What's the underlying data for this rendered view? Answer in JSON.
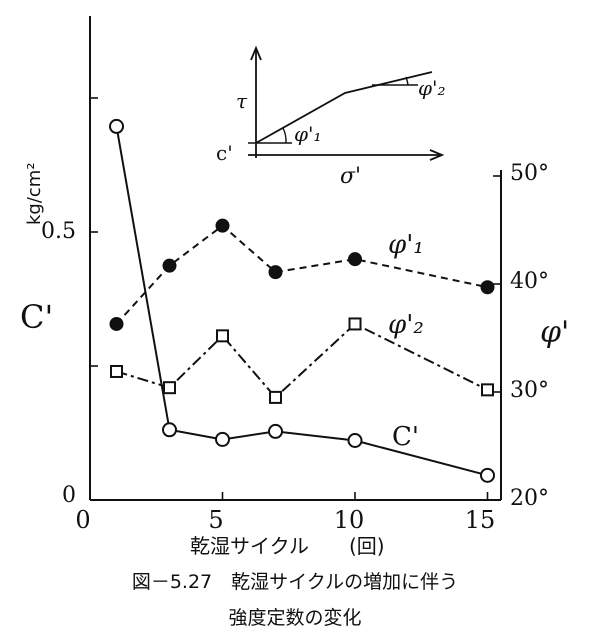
{
  "chart_data": {
    "type": "line",
    "xlabel": "乾湿サイクル　　(回)",
    "x_ticks": [
      "0",
      "5",
      "10",
      "15"
    ],
    "xlim": [
      0,
      15.5
    ],
    "left_axis": {
      "label": "C'",
      "unit": "kg/cm²",
      "ylim": [
        0,
        1.0
      ],
      "ticks": [
        "0",
        "0.5"
      ]
    },
    "right_axis": {
      "label": "φ'",
      "ylim": [
        20,
        50
      ],
      "ticks": [
        "20°",
        "30°",
        "40°",
        "50°"
      ]
    },
    "series": [
      {
        "name": "φ'₁",
        "axis": "right",
        "marker": "filled-circle",
        "line": "dashed",
        "x": [
          1,
          3,
          5,
          7,
          10,
          15
        ],
        "y": [
          36.3,
          41.7,
          45.4,
          41.1,
          42.3,
          39.7
        ]
      },
      {
        "name": "φ'₂",
        "axis": "right",
        "marker": "open-square",
        "line": "dash-dot",
        "x": [
          1,
          3,
          5,
          7,
          10,
          15
        ],
        "y": [
          31.9,
          30.4,
          35.2,
          29.5,
          36.3,
          30.2
        ]
      },
      {
        "name": "C'",
        "axis": "left",
        "marker": "open-circle",
        "line": "solid",
        "x": [
          1,
          3,
          5,
          7,
          10,
          15
        ],
        "y": [
          0.697,
          0.131,
          0.113,
          0.128,
          0.111,
          0.046
        ]
      }
    ]
  },
  "inset": {
    "y_axis_label": "τ",
    "x_axis_label": "σ'",
    "intercept_label": "c'",
    "angle_1_label": "φ'₁",
    "angle_2_label": "φ'₂"
  },
  "caption": {
    "line1": "図－5.27　乾湿サイクルの増加に伴う",
    "line2": "強度定数の変化"
  }
}
